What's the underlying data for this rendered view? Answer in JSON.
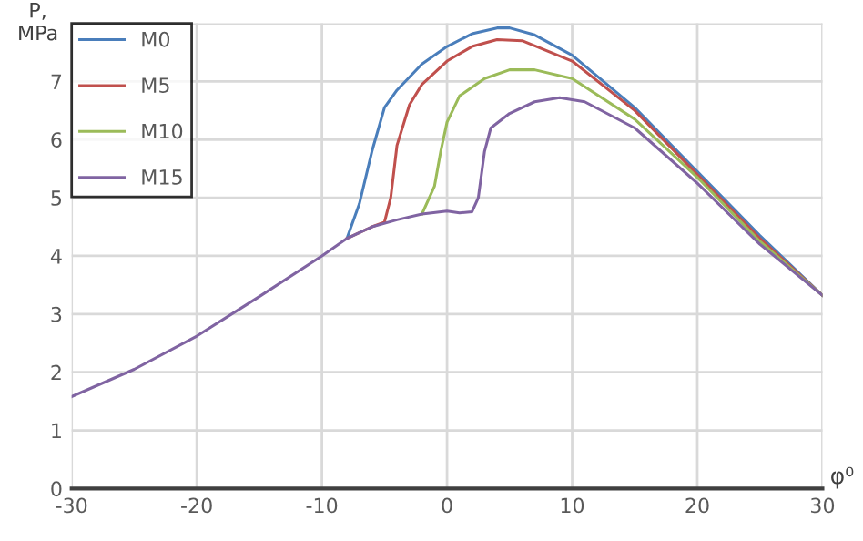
{
  "chart_data": {
    "type": "line",
    "xlabel": "φ⁰",
    "ylabel": "P,\nMPa",
    "xlim": [
      -30,
      30
    ],
    "xticks": [
      -30,
      -20,
      -10,
      0,
      10,
      20,
      30
    ],
    "ylim": [
      0,
      8
    ],
    "yticks": [
      0,
      1,
      2,
      3,
      4,
      5,
      6,
      7,
      {
        "value": 8,
        "label": null
      }
    ],
    "grid": true,
    "legend": "top left",
    "marker": "none",
    "line_style": "solid",
    "series": [
      {
        "name": "M0",
        "color": "#4a7ebb",
        "x": [
          -8,
          -7,
          -6,
          -5,
          -4,
          -2,
          0,
          2,
          4,
          5,
          7,
          10,
          15,
          20,
          25,
          30
        ],
        "values": [
          4.3,
          4.9,
          5.8,
          6.55,
          6.85,
          7.3,
          7.6,
          7.82,
          7.92,
          7.92,
          7.8,
          7.45,
          6.55,
          5.45,
          4.35,
          3.32
        ]
      },
      {
        "name": "M5",
        "color": "#c0504d",
        "x": [
          -8,
          -6,
          -5,
          -4.5,
          -4,
          -3,
          -2,
          0,
          2,
          4,
          6,
          10,
          15,
          20,
          25,
          30
        ],
        "values": [
          4.3,
          4.5,
          4.58,
          5.0,
          5.9,
          6.6,
          6.95,
          7.35,
          7.6,
          7.72,
          7.7,
          7.35,
          6.5,
          5.4,
          4.3,
          3.32
        ]
      },
      {
        "name": "M10",
        "color": "#9bbb59",
        "x": [
          -2,
          -1,
          -0.5,
          0,
          1,
          3,
          5,
          7,
          10,
          15,
          20,
          25,
          30
        ],
        "values": [
          4.72,
          5.2,
          5.8,
          6.3,
          6.75,
          7.05,
          7.2,
          7.2,
          7.05,
          6.35,
          5.35,
          4.25,
          3.32
        ]
      },
      {
        "name": "M15",
        "color": "#8064a2",
        "x": [
          -30,
          -25,
          -20,
          -15,
          -10,
          -8,
          -6,
          -4,
          -2,
          0,
          1,
          2,
          2.5,
          3,
          3.5,
          5,
          7,
          9,
          11,
          15,
          20,
          25,
          30
        ],
        "values": [
          1.58,
          2.05,
          2.62,
          3.3,
          4.0,
          4.3,
          4.5,
          4.62,
          4.72,
          4.77,
          4.74,
          4.76,
          5.0,
          5.8,
          6.2,
          6.45,
          6.65,
          6.72,
          6.65,
          6.2,
          5.25,
          4.2,
          3.32
        ]
      }
    ]
  }
}
